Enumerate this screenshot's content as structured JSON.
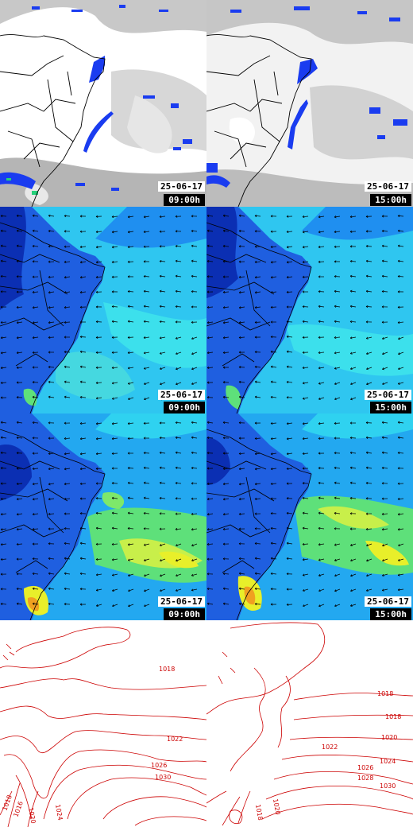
{
  "panels": {
    "satellite_left": {
      "date": "25-06-17",
      "time": "09:00h"
    },
    "satellite_right": {
      "date": "25-06-17",
      "time": "15:00h"
    },
    "wind_a_left": {
      "date": "25-06-17",
      "time": "09:00h"
    },
    "wind_a_right": {
      "date": "25-06-17",
      "time": "15:00h"
    },
    "wind_b_left": {
      "date": "25-06-17",
      "time": "09:00h"
    },
    "wind_b_right": {
      "date": "25-06-17",
      "time": "15:00h"
    },
    "pressure_left": {
      "isobar_labels": [
        "1018",
        "1022",
        "1026",
        "1030",
        "1024",
        "1020",
        "1018",
        "1016"
      ]
    },
    "pressure_right": {
      "isobar_labels": [
        "1018",
        "1018",
        "1020",
        "1022",
        "1024",
        "1026",
        "1028",
        "1030",
        "1020",
        "1018"
      ]
    }
  },
  "colors": {
    "wind_deep": "#0b2fb3",
    "wind_mid": "#1f7af0",
    "wind_light": "#2fd2f0",
    "wind_green": "#5ee07a",
    "wind_yellow": "#e8ef2a",
    "isobar": "#cc0000",
    "cloud_gray": "#bdbdbd",
    "rain_blue": "#1a3cf0"
  }
}
